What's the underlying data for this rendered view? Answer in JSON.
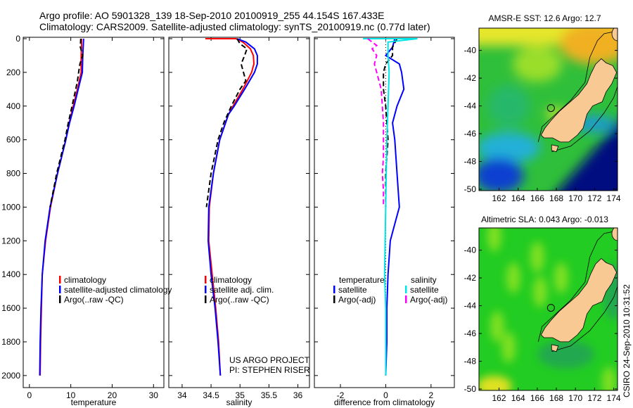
{
  "header": {
    "line1": "Argo profile: AO 5901328_139 18-Sep-2010 20100919_255 44.154S 167.433E",
    "line2": "Climatology: CARS2009. Satellite-adjusted climatology: synTS_20100919.nc (0.77d later)"
  },
  "credit": {
    "project": "US ARGO PROJECT",
    "pi": "PI: STEPHEN RISER",
    "stamp": "CSIRO 24-Sep-2010 10:31:52"
  },
  "colors": {
    "climatology": "#ff0000",
    "satellite": "#0000ff",
    "argo": "#000000",
    "sal_satellite": "#00e5e5",
    "sal_argo": "#ff00ff",
    "land": "#f9c994"
  },
  "chart_data": [
    {
      "type": "line",
      "id": "temperature",
      "xlabel": "temperature",
      "xlim": [
        -1.5,
        32.5
      ],
      "ylim": [
        0,
        2080
      ],
      "xticks": [
        0,
        10,
        20,
        30
      ],
      "yticks": [
        0,
        200,
        400,
        600,
        800,
        1000,
        1200,
        1400,
        1600,
        1800,
        2000
      ],
      "legend": [
        "climatology",
        "satellite-adjusted climatology",
        "Argo(..raw -QC)"
      ],
      "series": [
        {
          "name": "climatology",
          "style": "solid",
          "color": "#ff0000",
          "depth": [
            0,
            50,
            100,
            200,
            300,
            400,
            500,
            600,
            800,
            1000,
            1200,
            1400,
            1600,
            1800,
            2000
          ],
          "values": [
            12.6,
            12.6,
            12.5,
            12.5,
            11.6,
            10.6,
            9.6,
            8.8,
            6.8,
            5.1,
            3.9,
            3.1,
            2.9,
            2.7,
            2.6
          ]
        },
        {
          "name": "satellite-adjusted climatology",
          "style": "solid",
          "color": "#0000ff",
          "depth": [
            0,
            50,
            100,
            200,
            300,
            400,
            500,
            600,
            800,
            1000,
            1200,
            1400,
            1600,
            1800,
            2000
          ],
          "values": [
            13.1,
            13.0,
            12.9,
            12.8,
            11.8,
            10.8,
            9.7,
            8.8,
            6.8,
            5.0,
            3.8,
            3.1,
            2.8,
            2.6,
            2.5
          ]
        },
        {
          "name": "Argo(..raw -QC)",
          "style": "dash",
          "color": "#000000",
          "depth": [
            0,
            50,
            100,
            150,
            200,
            250,
            300,
            400,
            500,
            600,
            800,
            1000
          ],
          "values": [
            12.4,
            12.3,
            12.9,
            12.2,
            11.9,
            11.6,
            11.2,
            10.3,
            9.4,
            8.6,
            6.6,
            5.0
          ]
        }
      ]
    },
    {
      "type": "line",
      "id": "salinity",
      "xlabel": "salinity",
      "xlim": [
        33.77,
        36.2
      ],
      "ylim": [
        0,
        2080
      ],
      "xticks": [
        34,
        34.5,
        35,
        35.5,
        36
      ],
      "legend": [
        "climatology",
        "satellite adj. clim.",
        "Argo(..raw -QC)"
      ],
      "series": [
        {
          "name": "climatology",
          "style": "solid",
          "color": "#ff0000",
          "depth": [
            0,
            0,
            20,
            60,
            100,
            150,
            200,
            300,
            400,
            450,
            600,
            800,
            1000,
            1200,
            1400,
            1600,
            1800,
            2000
          ],
          "values": [
            34.4,
            34.93,
            35.05,
            35.18,
            35.23,
            35.24,
            35.2,
            35.05,
            34.88,
            34.8,
            34.65,
            34.54,
            34.47,
            34.46,
            34.52,
            34.58,
            34.63,
            34.66
          ]
        },
        {
          "name": "satellite adj. clim.",
          "style": "solid",
          "color": "#0000ff",
          "depth": [
            0,
            20,
            60,
            100,
            150,
            200,
            300,
            400,
            450,
            600,
            800,
            1000,
            1200,
            1400,
            1600,
            1800,
            2000
          ],
          "values": [
            34.95,
            35.1,
            35.25,
            35.3,
            35.3,
            35.25,
            35.08,
            34.9,
            34.8,
            34.65,
            34.54,
            34.46,
            34.45,
            34.5,
            34.57,
            34.62,
            34.66
          ]
        },
        {
          "name": "Argo(..raw -QC)",
          "style": "dash",
          "color": "#000000",
          "depth": [
            0,
            30,
            60,
            100,
            150,
            200,
            250,
            300,
            400,
            500,
            600,
            800,
            1000
          ],
          "values": [
            34.95,
            35.0,
            35.12,
            35.08,
            35.02,
            35.06,
            35.1,
            35.0,
            34.85,
            34.72,
            34.62,
            34.5,
            34.42
          ]
        }
      ]
    },
    {
      "type": "line",
      "id": "difference",
      "xlabel": "difference from climatology",
      "xlim": [
        -3.15,
        3.03
      ],
      "ylim": [
        0,
        2080
      ],
      "xticks": [
        -2,
        0,
        2
      ],
      "legend_headers": [
        "temperature",
        "salinity"
      ],
      "legend": [
        "satellite",
        "Argo(-adj)",
        "satellite",
        "Argo(-adj)"
      ],
      "series": [
        {
          "name": "temperature satellite",
          "style": "solid",
          "color": "#0000ff",
          "depth": [
            0,
            50,
            100,
            150,
            200,
            300,
            400,
            500,
            600,
            800,
            1000,
            1100,
            1200,
            1400,
            1600,
            1800,
            2000
          ],
          "values": [
            0.4,
            0.3,
            0.0,
            0.6,
            0.7,
            0.8,
            0.5,
            0.3,
            0.4,
            0.5,
            0.6,
            0.4,
            0.2,
            0.1,
            0.05,
            0.05,
            0.0
          ]
        },
        {
          "name": "temperature Argo(-adj)",
          "style": "dash",
          "color": "#000000",
          "depth": [
            0,
            50,
            100,
            150,
            200,
            300,
            400,
            600,
            800,
            1000
          ],
          "values": [
            0.5,
            0.3,
            0.3,
            0.0,
            -0.1,
            -0.1,
            0.0,
            0.1,
            0.0,
            0.0
          ]
        },
        {
          "name": "salinity satellite",
          "style": "solid",
          "color": "#00e5e5",
          "depth": [
            0,
            0,
            20,
            100,
            200,
            400,
            600,
            1000,
            1400,
            1600,
            2000
          ],
          "values": [
            -1.0,
            1.4,
            0.1,
            0.1,
            0.15,
            0.1,
            0.05,
            0.0,
            -0.05,
            0.0,
            0.0
          ]
        },
        {
          "name": "salinity Argo(-adj)",
          "style": "dash",
          "color": "#ff00ff",
          "depth": [
            0,
            40,
            60,
            100,
            150,
            200,
            300,
            500,
            700,
            800,
            900,
            1000
          ],
          "values": [
            -0.8,
            -0.4,
            -0.6,
            -0.4,
            -0.5,
            -0.4,
            -0.2,
            -0.1,
            -0.1,
            -0.15,
            -0.1,
            -0.1
          ]
        }
      ]
    }
  ],
  "maps": [
    {
      "title": "AMSR-E SST: 12.6 Argo: 12.7",
      "kind": "sst"
    },
    {
      "title": "Altimetric SLA: 0.043 Argo: -0.013",
      "kind": "sla"
    }
  ],
  "map_axes": {
    "lon_ticks": [
      162,
      164,
      166,
      168,
      170,
      172,
      174
    ],
    "lat_ticks": [
      -40,
      -42,
      -44,
      -46,
      -48,
      -50
    ],
    "lon_range": [
      159.9,
      174.4
    ],
    "lat_range": [
      -38.4,
      -50.1
    ],
    "argo_position": {
      "lon": 167.433,
      "lat": -44.154
    }
  }
}
